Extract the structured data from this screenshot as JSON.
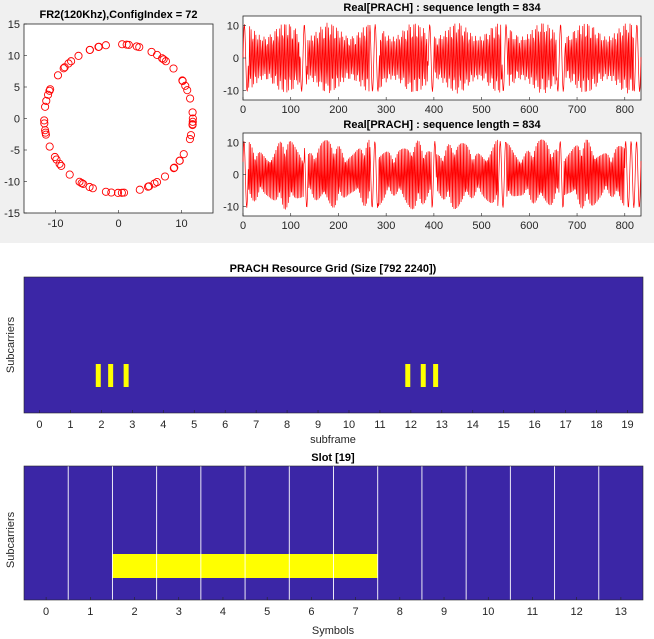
{
  "colors": {
    "marker": "#ff0000",
    "grid_bg": "#3b26a6",
    "grid_marker": "#ffff00",
    "separator": "#ffffff"
  },
  "chart_data": [
    {
      "type": "scatter",
      "title": "FR2(120Khz),ConfigIndex = 72",
      "marker": "circle",
      "radius": 11.8,
      "points_count": 71,
      "xlim": [
        -15,
        15
      ],
      "ylim": [
        -15,
        15
      ],
      "xticks": [
        "-10",
        "0",
        "10"
      ],
      "yticks": [
        "15",
        "10",
        "5",
        "0",
        "-5",
        "-10",
        "-15"
      ]
    },
    {
      "type": "line",
      "title": "Real[PRACH] : sequence length = 834",
      "xlim": [
        0,
        834
      ],
      "ylim": [
        -13,
        13
      ],
      "xticks": [
        "0",
        "100",
        "200",
        "300",
        "400",
        "500",
        "600",
        "700",
        "800"
      ],
      "yticks": [
        "10",
        "0",
        "-10"
      ],
      "envelope_peak": 11,
      "dense_regions": [
        [
          12,
          119
        ],
        [
          134,
          265
        ],
        [
          286,
          387
        ],
        [
          401,
          542
        ],
        [
          556,
          657
        ],
        [
          675,
          818
        ]
      ]
    },
    {
      "type": "line",
      "title": "Real[PRACH] : sequence length = 834",
      "xlim": [
        0,
        834
      ],
      "ylim": [
        -13,
        13
      ],
      "xticks": [
        "0",
        "100",
        "200",
        "300",
        "400",
        "500",
        "600",
        "700",
        "800"
      ],
      "yticks": [
        "10",
        "0",
        "-10"
      ],
      "envelope_peak": 11,
      "dense_regions": [
        [
          12,
          128
        ],
        [
          136,
          265
        ],
        [
          284,
          395
        ],
        [
          406,
          533
        ],
        [
          552,
          662
        ],
        [
          673,
          800
        ]
      ]
    },
    {
      "type": "heatmap",
      "title": "PRACH Resource Grid (Size [792 2240])",
      "xlabel": "subframe",
      "ylabel": "Subcarriers",
      "xlim": [
        -0.5,
        19.5
      ],
      "xticks": [
        "0",
        "1",
        "2",
        "3",
        "4",
        "5",
        "6",
        "7",
        "8",
        "9",
        "10",
        "11",
        "12",
        "13",
        "14",
        "15",
        "16",
        "17",
        "18",
        "19"
      ],
      "occupied": [
        1.9,
        2.3,
        2.8,
        11.9,
        12.4,
        12.8
      ]
    },
    {
      "type": "heatmap",
      "title": "Slot [19]",
      "xlabel": "Symbols",
      "ylabel": "Subcarriers",
      "xlim": [
        -0.5,
        13.5
      ],
      "xticks": [
        "0",
        "1",
        "2",
        "3",
        "4",
        "5",
        "6",
        "7",
        "8",
        "9",
        "10",
        "11",
        "12",
        "13"
      ],
      "occupied_symbols": [
        1.5,
        7.5
      ],
      "separators": [
        0.5,
        1.5,
        2.5,
        3.5,
        4.5,
        5.5,
        6.5,
        7.5,
        8.5,
        9.5,
        10.5,
        11.5,
        12.5
      ]
    }
  ]
}
